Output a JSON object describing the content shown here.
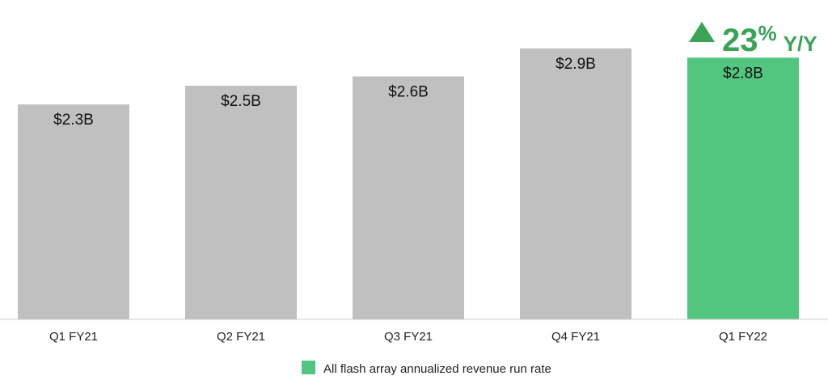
{
  "chart_data": {
    "type": "bar",
    "categories": [
      "Q1 FY21",
      "Q2 FY21",
      "Q3 FY21",
      "Q4 FY21",
      "Q1 FY22"
    ],
    "values": [
      2.3,
      2.5,
      2.6,
      2.9,
      2.8
    ],
    "data_labels": [
      "$2.3B",
      "$2.5B",
      "$2.6B",
      "$2.9B",
      "$2.8B"
    ],
    "ylim": [
      0,
      3.4
    ],
    "grid": false,
    "bar_colors": [
      "#c0c0c0",
      "#c0c0c0",
      "#c0c0c0",
      "#c0c0c0",
      "#52c67e"
    ],
    "legend": {
      "placement": "bottom-center",
      "entries": [
        {
          "label": "All flash array annualized revenue run rate",
          "color": "#52c67e"
        }
      ]
    },
    "annotation": {
      "direction": "up",
      "value": "23",
      "percent_sign": "%",
      "suffix": "Y/Y",
      "color": "#3aa356",
      "icon": "triangle-up-icon"
    }
  }
}
